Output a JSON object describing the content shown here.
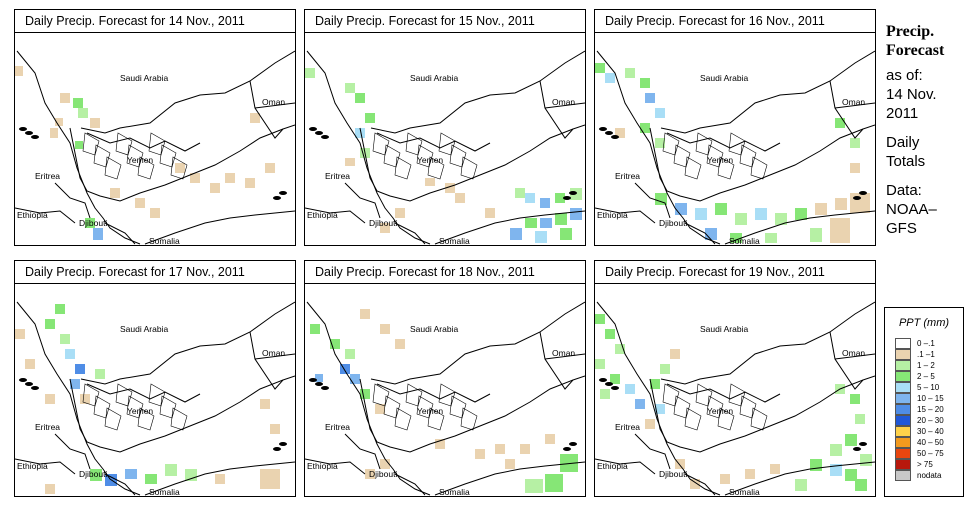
{
  "panels": [
    {
      "title": "Daily Precip. Forecast for  14 Nov., 2011",
      "pattern": "d14"
    },
    {
      "title": "Daily Precip. Forecast for  15 Nov., 2011",
      "pattern": "d15"
    },
    {
      "title": "Daily Precip. Forecast for  16 Nov., 2011",
      "pattern": "d16"
    },
    {
      "title": "Daily Precip. Forecast for  17 Nov., 2011",
      "pattern": "d17"
    },
    {
      "title": "Daily Precip. Forecast for  18 Nov., 2011",
      "pattern": "d18"
    },
    {
      "title": "Daily Precip. Forecast for  19 Nov., 2011",
      "pattern": "d19"
    }
  ],
  "map_labels": {
    "saudi": "Saudi Arabia",
    "oman": "Oman",
    "yemen": "Yemen",
    "eritrea": "Eritrea",
    "ethiopia": "Ethiopia",
    "djibouti": "Djibouti",
    "somalia": "Somalia"
  },
  "sidebar": {
    "title_line1": "Precip.",
    "title_line2": "Forecast",
    "asof_label": "as of:",
    "date_line1": "14 Nov.",
    "date_line2": "2011",
    "totals_line1": "Daily",
    "totals_line2": "Totals",
    "data_label": "Data:",
    "source_line1": "NOAA–",
    "source_line2": "GFS"
  },
  "legend": {
    "title": "PPT (mm)",
    "items": [
      {
        "label": "0 –.1",
        "color": "#ffffff"
      },
      {
        "label": ".1 –1",
        "color": "#ead3b0"
      },
      {
        "label": "1 – 2",
        "color": "#b6f0a4"
      },
      {
        "label": "2 – 5",
        "color": "#86e676"
      },
      {
        "label": "5 – 10",
        "color": "#a9def6"
      },
      {
        "label": "10 – 15",
        "color": "#7fb5ee"
      },
      {
        "label": "15 – 20",
        "color": "#4f8de6"
      },
      {
        "label": "20 – 30",
        "color": "#2058d8"
      },
      {
        "label": "30 – 40",
        "color": "#ffd24a"
      },
      {
        "label": "40 – 50",
        "color": "#f29a1e"
      },
      {
        "label": "50 – 75",
        "color": "#e8460f"
      },
      {
        "label": "> 75",
        "color": "#b8180c"
      },
      {
        "label": "nodata",
        "color": "#c8c8c8"
      }
    ]
  }
}
